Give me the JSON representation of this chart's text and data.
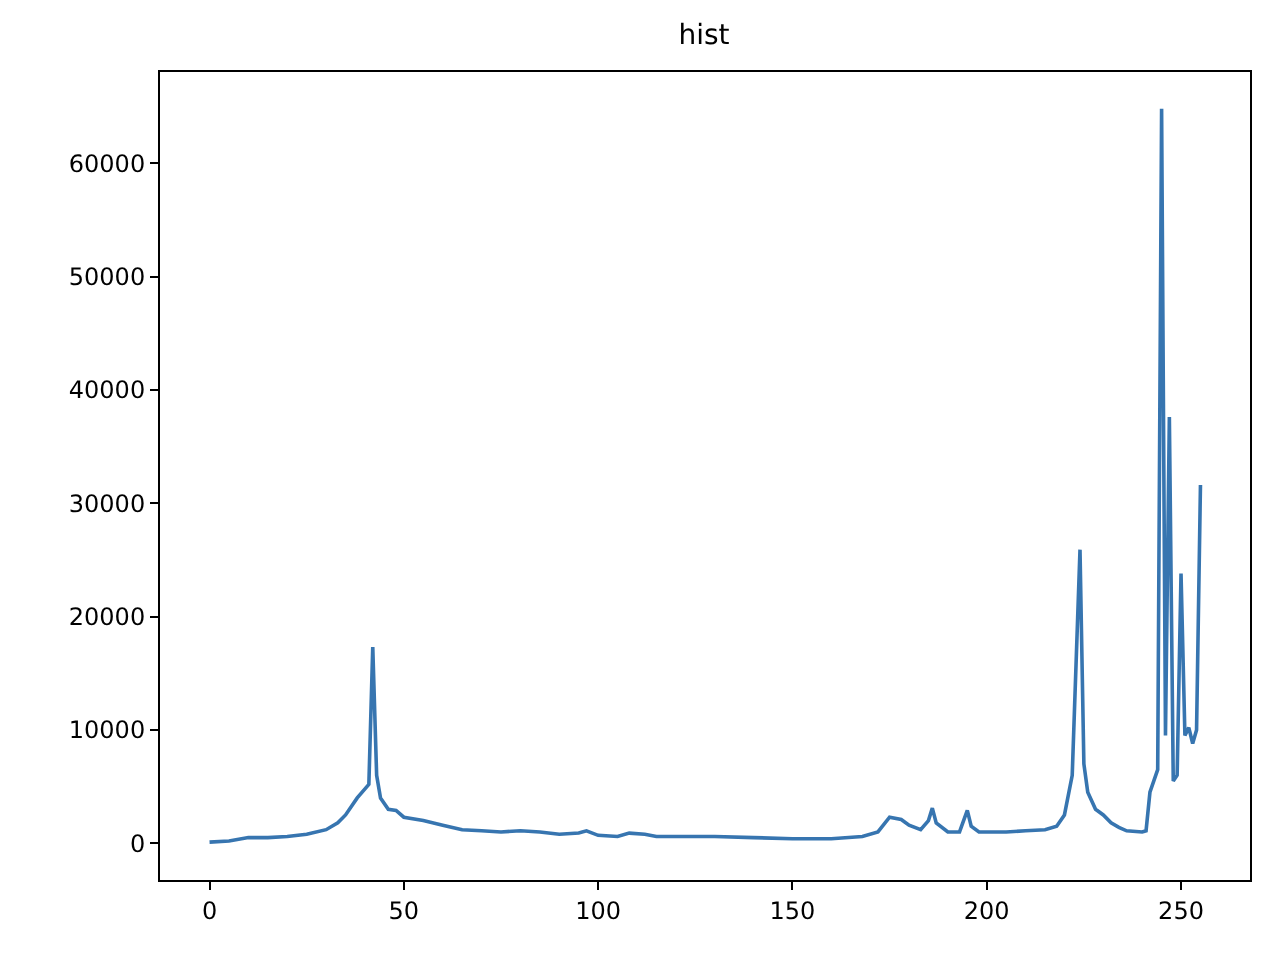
{
  "chart_data": {
    "type": "line",
    "title": "hist",
    "x": [
      0,
      5,
      10,
      15,
      20,
      25,
      30,
      33,
      35,
      38,
      40,
      41,
      42,
      43,
      44,
      46,
      48,
      50,
      55,
      60,
      65,
      70,
      75,
      80,
      85,
      90,
      95,
      97,
      100,
      105,
      108,
      112,
      115,
      120,
      130,
      140,
      150,
      160,
      168,
      172,
      175,
      178,
      180,
      183,
      185,
      186,
      187,
      190,
      193,
      195,
      196,
      198,
      205,
      210,
      215,
      218,
      220,
      222,
      224,
      225,
      226,
      228,
      230,
      232,
      234,
      236,
      240,
      241,
      242,
      243,
      244,
      245,
      246,
      247,
      248,
      249,
      250,
      251,
      252,
      253,
      254,
      255
    ],
    "series": [
      {
        "color": "#3775b0",
        "values": [
          100,
          200,
          500,
          500,
          600,
          800,
          1200,
          1800,
          2500,
          4000,
          4800,
          5200,
          17300,
          6000,
          4000,
          3000,
          2900,
          2300,
          2000,
          1600,
          1200,
          1100,
          1000,
          1100,
          1000,
          800,
          900,
          1100,
          700,
          600,
          900,
          800,
          600,
          600,
          600,
          500,
          400,
          400,
          600,
          1000,
          2300,
          2100,
          1600,
          1200,
          2000,
          3100,
          1800,
          1000,
          1000,
          2900,
          1500,
          1000,
          1000,
          1100,
          1200,
          1500,
          2500,
          6000,
          25900,
          7000,
          4500,
          3000,
          2500,
          1800,
          1400,
          1100,
          1000,
          1100,
          4500,
          5500,
          6500,
          64800,
          9500,
          37600,
          5500,
          6000,
          23800,
          9500,
          10200,
          8800,
          10000,
          31600
        ]
      }
    ],
    "xlim": [
      -12.75,
      267.75
    ],
    "xticks": [
      0,
      50,
      100,
      150,
      200,
      250
    ],
    "ylim": [
      -3240,
      68040
    ],
    "yticks": [
      0,
      10000,
      20000,
      30000,
      40000,
      50000,
      60000
    ],
    "grid": false,
    "marker": "none",
    "line_style": "solid"
  }
}
